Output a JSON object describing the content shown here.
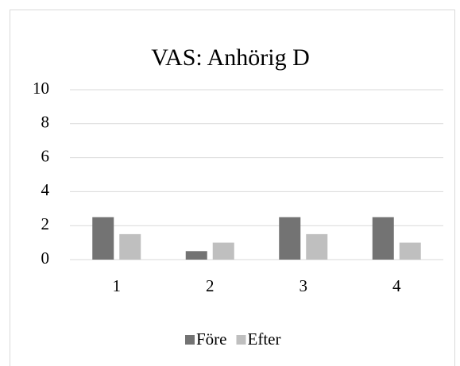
{
  "chart_data": {
    "type": "bar",
    "title": "VAS: Anhörig D",
    "categories": [
      "1",
      "2",
      "3",
      "4"
    ],
    "series": [
      {
        "name": "Före",
        "color": "#737373",
        "values": [
          2.5,
          0.5,
          2.5,
          2.5
        ]
      },
      {
        "name": "Efter",
        "color": "#bfbfbf",
        "values": [
          1.5,
          1,
          1.5,
          1
        ]
      }
    ],
    "ylim": [
      0,
      10
    ],
    "yticks": [
      0,
      2,
      4,
      6,
      8,
      10
    ],
    "grid": true,
    "legend": "bottom"
  }
}
